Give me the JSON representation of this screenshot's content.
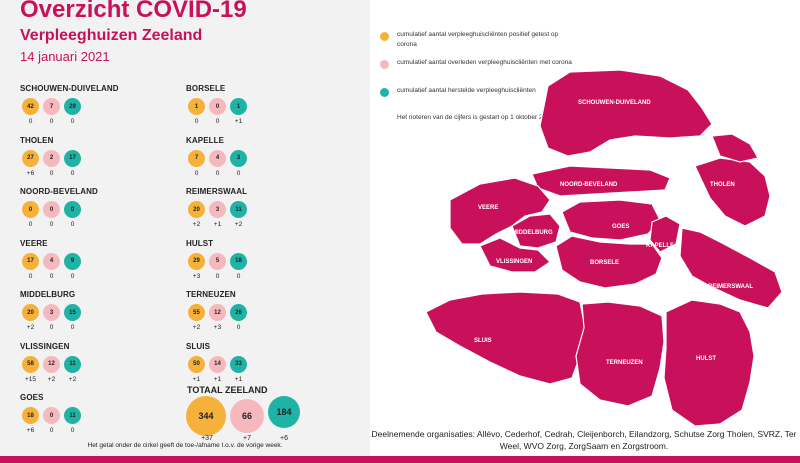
{
  "header": {
    "title": "Overzicht COVID-19",
    "subtitle": "Verpleeghuizen Zeeland",
    "date": "14 januari 2021"
  },
  "colors": {
    "positive": "#f5b13a",
    "deceased": "#f5b8bd",
    "recovered": "#1fb3a5",
    "accent": "#c8115a"
  },
  "regions_left": [
    {
      "name": "SCHOUWEN-DUIVELAND",
      "positive": "42",
      "deceased": "7",
      "recovered": "29",
      "d_positive": "0",
      "d_deceased": "0",
      "d_recovered": "0"
    },
    {
      "name": "THOLEN",
      "positive": "27",
      "deceased": "2",
      "recovered": "17",
      "d_positive": "+6",
      "d_deceased": "0",
      "d_recovered": "0"
    },
    {
      "name": "NOORD-BEVELAND",
      "positive": "0",
      "deceased": "0",
      "recovered": "0",
      "d_positive": "0",
      "d_deceased": "0",
      "d_recovered": "0"
    },
    {
      "name": "VEERE",
      "positive": "17",
      "deceased": "4",
      "recovered": "9",
      "d_positive": "0",
      "d_deceased": "0",
      "d_recovered": "0"
    },
    {
      "name": "MIDDELBURG",
      "positive": "20",
      "deceased": "3",
      "recovered": "15",
      "d_positive": "+2",
      "d_deceased": "0",
      "d_recovered": "0"
    },
    {
      "name": "VLISSINGEN",
      "positive": "58",
      "deceased": "12",
      "recovered": "11",
      "d_positive": "+15",
      "d_deceased": "+2",
      "d_recovered": "+2"
    },
    {
      "name": "GOES",
      "positive": "18",
      "deceased": "0",
      "recovered": "11",
      "d_positive": "+6",
      "d_deceased": "0",
      "d_recovered": "0"
    }
  ],
  "regions_right": [
    {
      "name": "BORSELE",
      "positive": "1",
      "deceased": "0",
      "recovered": "1",
      "d_positive": "0",
      "d_deceased": "0",
      "d_recovered": "+1"
    },
    {
      "name": "KAPELLE",
      "positive": "7",
      "deceased": "4",
      "recovered": "3",
      "d_positive": "0",
      "d_deceased": "0",
      "d_recovered": "0"
    },
    {
      "name": "REIMERSWAAL",
      "positive": "20",
      "deceased": "3",
      "recovered": "11",
      "d_positive": "+2",
      "d_deceased": "+1",
      "d_recovered": "+2"
    },
    {
      "name": "HULST",
      "positive": "29",
      "deceased": "5",
      "recovered": "18",
      "d_positive": "+3",
      "d_deceased": "0",
      "d_recovered": "0"
    },
    {
      "name": "TERNEUZEN",
      "positive": "55",
      "deceased": "12",
      "recovered": "26",
      "d_positive": "+2",
      "d_deceased": "+3",
      "d_recovered": "0"
    },
    {
      "name": "SLUIS",
      "positive": "50",
      "deceased": "14",
      "recovered": "33",
      "d_positive": "+1",
      "d_deceased": "+1",
      "d_recovered": "+1"
    }
  ],
  "total": {
    "title": "TOTAAL ZEELAND",
    "positive": "344",
    "deceased": "66",
    "recovered": "184",
    "d_positive": "+37",
    "d_deceased": "+7",
    "d_recovered": "+6"
  },
  "footnote": "Het getal onder de cirkel geeft de toe-/afname t.o.v. de vorige week.",
  "legend": [
    {
      "text": "cumulatief aantal verpleeghuiscliënten positief getest op corona",
      "color": "#f5b13a"
    },
    {
      "text": "cumulatief aantal overleden verpleeghuiscliënten met corona",
      "color": "#f5b8bd"
    },
    {
      "text": "cumulatief aantal herstelde verpleeghuiscliënten",
      "color": "#1fb3a5"
    }
  ],
  "note": "Het noteren van de cijfers is gestart op 1 oktober 2020",
  "map_labels": {
    "schouwen": "SCHOUWEN-DUIVELAND",
    "noord_beveland": "NOORD-BEVELAND",
    "tholen": "THOLEN",
    "veere": "VEERE",
    "middelburg": "MIDDELBURG",
    "goes": "GOES",
    "kapelle": "KAPELLE",
    "vlissingen": "VLISSINGEN",
    "borsele": "BORSELE",
    "reimerswaal": "REIMERSWAAL",
    "sluis": "SLUIS",
    "terneuzen": "TERNEUZEN",
    "hulst": "HULST"
  },
  "organisations": "Deelnemende organisaties: Allévo, Cederhof, Cedrah, Cleijenborch, Eilandzorg, Schutse Zorg Tholen, SVRZ, Ter Weel, WVO Zorg, ZorgSaam en Zorgstroom."
}
